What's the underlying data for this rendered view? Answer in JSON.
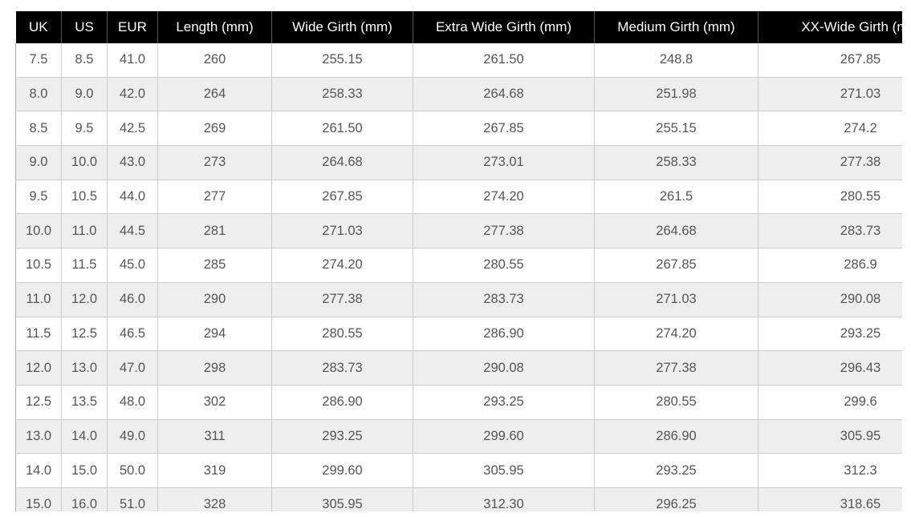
{
  "table": {
    "headers": [
      "UK",
      "US",
      "EUR",
      "Length (mm)",
      "Wide Girth (mm)",
      "Extra Wide Girth (mm)",
      "Medium Girth (mm)",
      "XX-Wide Girth (mm"
    ],
    "rows": [
      [
        "7.5",
        "8.5",
        "41.0",
        "260",
        "255.15",
        "261.50",
        "248.8",
        "267.85"
      ],
      [
        "8.0",
        "9.0",
        "42.0",
        "264",
        "258.33",
        "264.68",
        "251.98",
        "271.03"
      ],
      [
        "8.5",
        "9.5",
        "42.5",
        "269",
        "261.50",
        "267.85",
        "255.15",
        "274.2"
      ],
      [
        "9.0",
        "10.0",
        "43.0",
        "273",
        "264.68",
        "273.01",
        "258.33",
        "277.38"
      ],
      [
        "9.5",
        "10.5",
        "44.0",
        "277",
        "267.85",
        "274.20",
        "261.5",
        "280.55"
      ],
      [
        "10.0",
        "11.0",
        "44.5",
        "281",
        "271.03",
        "277.38",
        "264.68",
        "283.73"
      ],
      [
        "10.5",
        "11.5",
        "45.0",
        "285",
        "274.20",
        "280.55",
        "267.85",
        "286.9"
      ],
      [
        "11.0",
        "12.0",
        "46.0",
        "290",
        "277.38",
        "283.73",
        "271.03",
        "290.08"
      ],
      [
        "11.5",
        "12.5",
        "46.5",
        "294",
        "280.55",
        "286.90",
        "274.20",
        "293.25"
      ],
      [
        "12.0",
        "13.0",
        "47.0",
        "298",
        "283.73",
        "290.08",
        "277.38",
        "296.43"
      ],
      [
        "12.5",
        "13.5",
        "48.0",
        "302",
        "286.90",
        "293.25",
        "280.55",
        "299.6"
      ],
      [
        "13.0",
        "14.0",
        "49.0",
        "311",
        "293.25",
        "299.60",
        "286.90",
        "305.95"
      ],
      [
        "14.0",
        "15.0",
        "50.0",
        "319",
        "299.60",
        "305.95",
        "293.25",
        "312.3"
      ],
      [
        "15.0",
        "16.0",
        "51.0",
        "328",
        "305.95",
        "312.30",
        "296.25",
        "318.65"
      ]
    ]
  }
}
